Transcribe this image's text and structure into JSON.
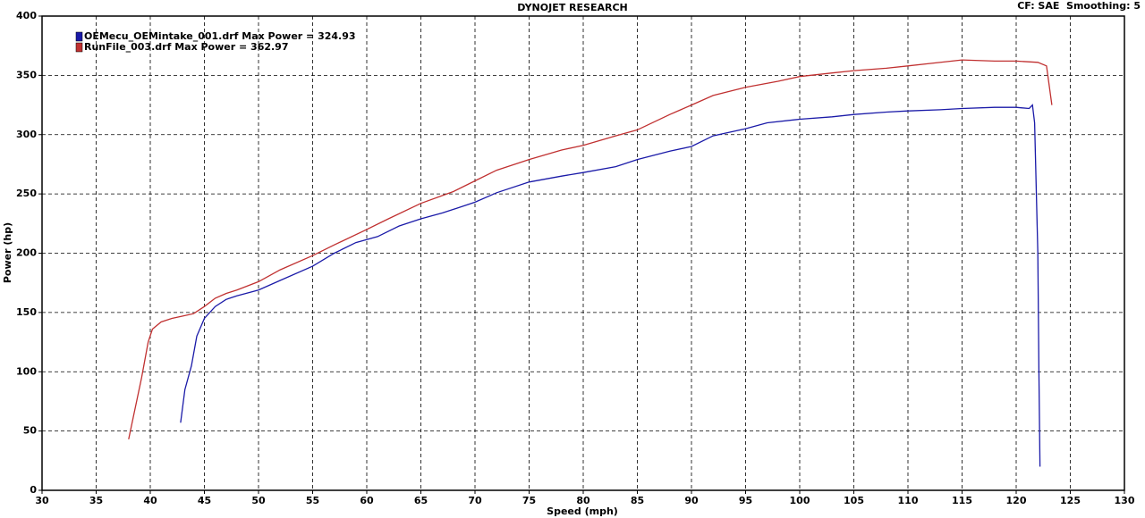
{
  "chart_data": {
    "type": "line",
    "title": "DYNOJET RESEARCH",
    "annotation": "CF: SAE  Smoothing: 5",
    "x_label": "Speed (mph)",
    "y_label": "Power (hp)",
    "xlim": [
      30,
      130
    ],
    "xticks": [
      30,
      35,
      40,
      45,
      50,
      55,
      60,
      65,
      70,
      75,
      80,
      85,
      90,
      95,
      100,
      105,
      110,
      115,
      120,
      125,
      130
    ],
    "ylim": [
      0,
      400
    ],
    "yticks": [
      0,
      50,
      100,
      150,
      200,
      250,
      300,
      350,
      400
    ],
    "grid": true,
    "legend": "top-left",
    "series": [
      {
        "name": "OEMecu_OEMintake_001.drf Max Power = 324.93",
        "color": "#1a1aa8",
        "x": [
          42.8,
          43.2,
          43.8,
          44.3,
          45,
          46,
          47,
          48,
          50,
          52,
          55,
          57,
          59,
          61,
          63,
          65,
          67,
          70,
          72,
          75,
          78,
          80,
          83,
          85,
          88,
          90,
          92,
          95,
          97,
          100,
          103,
          105,
          108,
          110,
          113,
          115,
          118,
          120,
          121.2,
          121.5,
          121.7,
          122,
          122.1,
          122.2
        ],
        "values": [
          57,
          85,
          105,
          130,
          145,
          155,
          161,
          164,
          169,
          177,
          189,
          200,
          209,
          214,
          223,
          229,
          234,
          243,
          251,
          260,
          265,
          268,
          273,
          279,
          286,
          290,
          299,
          305,
          310,
          313,
          315,
          317,
          319,
          320,
          321,
          322,
          323,
          323,
          322,
          325,
          310,
          200,
          100,
          20
        ]
      },
      {
        "name": "RunFile_003.drf Max Power = 362.97",
        "color": "#c03030",
        "x": [
          38,
          38.5,
          39.2,
          39.8,
          40.2,
          41,
          42,
          43,
          44,
          45,
          46,
          47,
          48,
          50,
          52,
          55,
          57,
          60,
          62,
          65,
          68,
          70,
          72,
          75,
          78,
          80,
          83,
          85,
          88,
          90,
          92,
          95,
          98,
          100,
          103,
          105,
          108,
          110,
          112,
          115,
          118,
          120,
          122,
          122.8,
          123.3
        ],
        "values": [
          43,
          65,
          95,
          125,
          136,
          142,
          145,
          147,
          149,
          155,
          162,
          166,
          169,
          176,
          186,
          198,
          207,
          220,
          229,
          242,
          252,
          261,
          270,
          279,
          287,
          291,
          299,
          304,
          317,
          325,
          333,
          340,
          345,
          349,
          352,
          354,
          356,
          358,
          360,
          363,
          362,
          362,
          361,
          358,
          325
        ]
      }
    ]
  }
}
